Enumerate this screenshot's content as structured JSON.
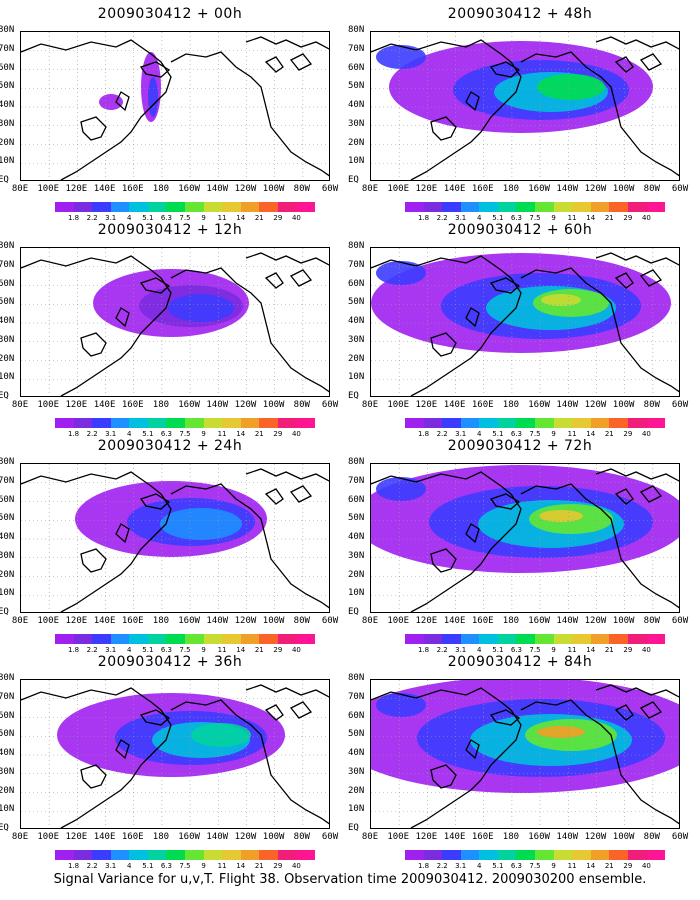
{
  "caption": "Signal Variance for u,v,T. Flight 38. Observation time 2009030412. 2009030200 ensemble.",
  "panels": [
    {
      "title": "2009030412 + 00h",
      "intensity": 0
    },
    {
      "title": "2009030412 + 12h",
      "intensity": 1
    },
    {
      "title": "2009030412 + 24h",
      "intensity": 2
    },
    {
      "title": "2009030412 + 36h",
      "intensity": 3
    },
    {
      "title": "2009030412 + 48h",
      "intensity": 4
    },
    {
      "title": "2009030412 + 60h",
      "intensity": 5
    },
    {
      "title": "2009030412 + 72h",
      "intensity": 6
    },
    {
      "title": "2009030412 + 84h",
      "intensity": 7
    }
  ],
  "lat_labels": [
    "80N",
    "70N",
    "60N",
    "50N",
    "40N",
    "30N",
    "20N",
    "10N",
    "EQ"
  ],
  "lon_labels": [
    "80E",
    "100E",
    "120E",
    "140E",
    "160E",
    "180",
    "160W",
    "140W",
    "120W",
    "100W",
    "80W",
    "60W"
  ],
  "colorbar": {
    "labels": [
      "1.8",
      "2.2",
      "3.1",
      "4",
      "5.1",
      "6.3",
      "7.5",
      "9",
      "11",
      "14",
      "21",
      "29",
      "40"
    ],
    "colors": [
      "#a020f0",
      "#7b2be0",
      "#3c3cff",
      "#1e90ff",
      "#00c0e0",
      "#00d2a0",
      "#00dc50",
      "#64e632",
      "#c8dc32",
      "#e6c832",
      "#f0a028",
      "#fa6428",
      "#f01e78",
      "#ff1493"
    ]
  },
  "chart_data": {
    "type": "heatmap",
    "title": "Signal Variance for u,v,T. Flight 38. Observation time 2009030412. 2009030200 ensemble.",
    "lead_times": [
      "00h",
      "12h",
      "24h",
      "36h",
      "48h",
      "60h",
      "72h",
      "84h"
    ],
    "levels": [
      1.8,
      2.2,
      3.1,
      4,
      5.1,
      6.3,
      7.5,
      9,
      11,
      14,
      21,
      29,
      40
    ]
  }
}
